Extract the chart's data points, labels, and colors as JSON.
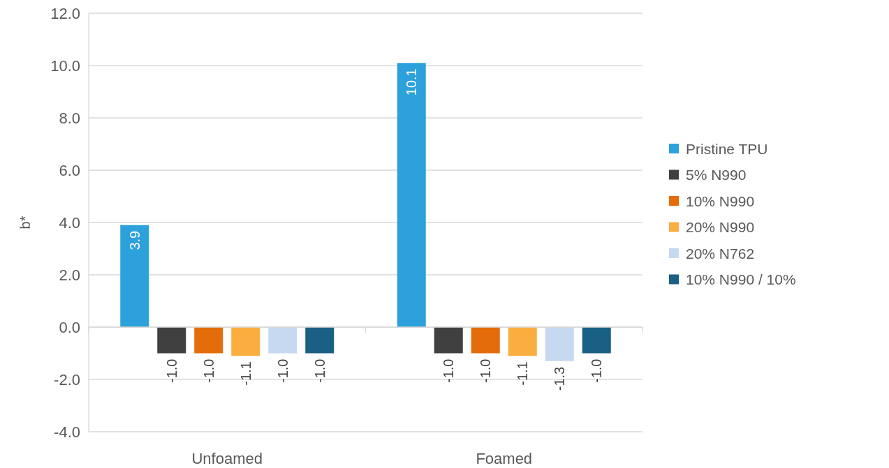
{
  "chart_data": {
    "type": "bar",
    "ylabel": "b*",
    "categories": [
      "Unfoamed",
      "Foamed"
    ],
    "series": [
      {
        "name": "Pristine TPU",
        "color": "#2ca1db",
        "values": [
          3.9,
          10.1
        ],
        "value_labels": [
          "3.9",
          "10.1"
        ]
      },
      {
        "name": "5% N990",
        "color": "#404040",
        "values": [
          -1.0,
          -1.0
        ],
        "value_labels": [
          "-1.0",
          "-1.0"
        ]
      },
      {
        "name": "10% N990",
        "color": "#e46c0a",
        "values": [
          -1.0,
          -1.0
        ],
        "value_labels": [
          "-1.0",
          "-1.0"
        ]
      },
      {
        "name": "20% N990",
        "color": "#f9ae3f",
        "values": [
          -1.1,
          -1.1
        ],
        "value_labels": [
          "-1.1",
          "-1.1"
        ]
      },
      {
        "name": "20% N762",
        "color": "#c6d9f0",
        "values": [
          -1.0,
          -1.3
        ],
        "value_labels": [
          "-1.0",
          "-1.3"
        ]
      },
      {
        "name": "10% N990 / 10%",
        "color": "#1a5f84",
        "values": [
          -1.0,
          -1.0
        ],
        "value_labels": [
          "-1.0",
          "-1.0"
        ]
      }
    ],
    "ylim": [
      -4,
      12
    ],
    "yticks": [
      {
        "value": -4,
        "label": "-4.0"
      },
      {
        "value": -2,
        "label": "-2.0"
      },
      {
        "value": 0,
        "label": "0.0"
      },
      {
        "value": 2,
        "label": "2.0"
      },
      {
        "value": 4,
        "label": "4.0"
      },
      {
        "value": 6,
        "label": "6.0"
      },
      {
        "value": 8,
        "label": "8.0"
      },
      {
        "value": 10,
        "label": "10.0"
      },
      {
        "value": 12,
        "label": "12.0"
      }
    ],
    "grid": "y",
    "legend": "right"
  }
}
